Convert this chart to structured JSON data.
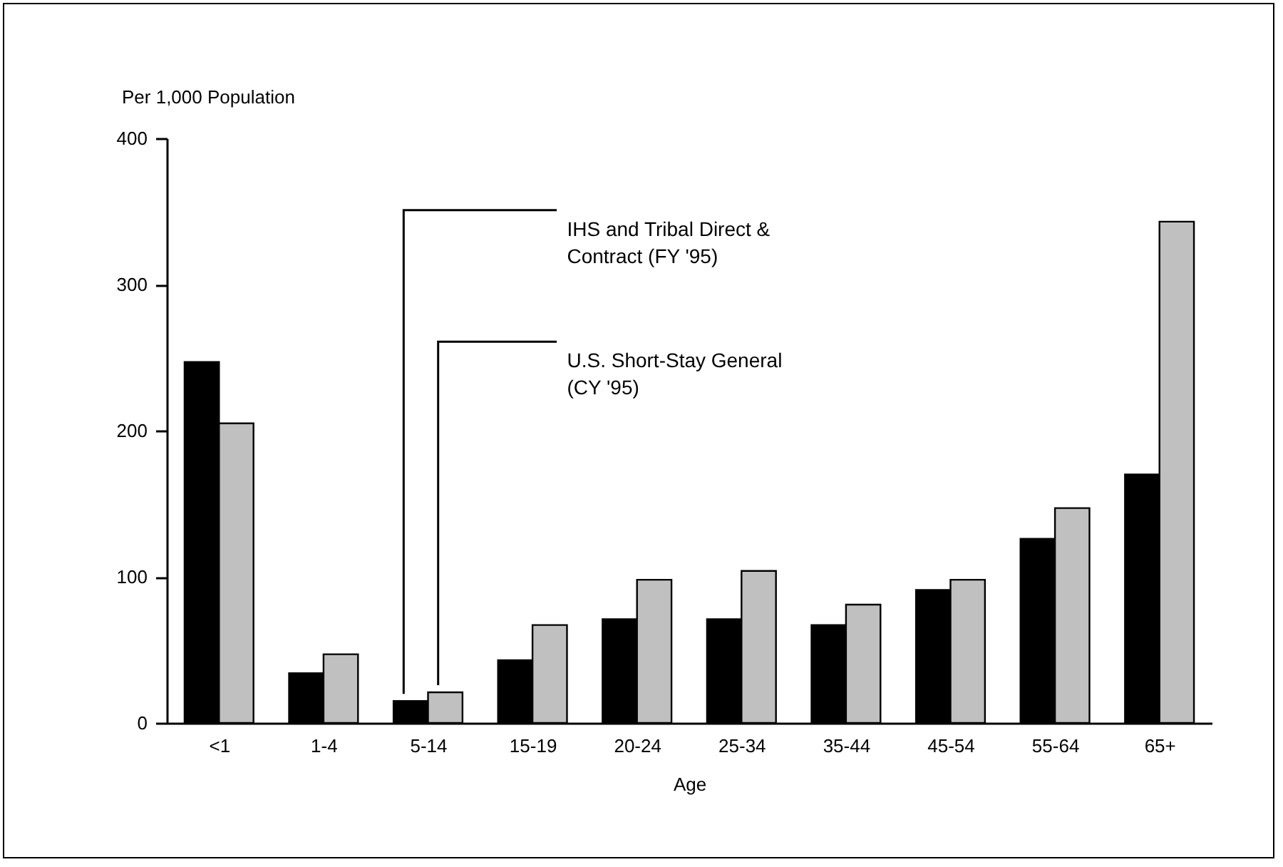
{
  "chart_data": {
    "type": "bar",
    "xlabel": "Age",
    "ylabel": "Per 1,000 Population",
    "categories": [
      "<1",
      "1-4",
      "5-14",
      "15-19",
      "20-24",
      "25-34",
      "35-44",
      "45-54",
      "55-64",
      "65+"
    ],
    "series": [
      {
        "name": "IHS and Tribal Direct & Contract (FY '95)",
        "color": "#000000",
        "values": [
          247,
          34,
          15,
          43,
          71,
          71,
          67,
          91,
          126,
          170
        ]
      },
      {
        "name": "U.S. Short-Stay General (CY '95)",
        "color": "#c0c0c0",
        "values": [
          205,
          47,
          21,
          67,
          98,
          104,
          81,
          98,
          147,
          343
        ]
      }
    ],
    "ylim": [
      0,
      400
    ],
    "yticks": [
      0,
      100,
      200,
      300,
      400
    ],
    "grid": false,
    "legend": "top"
  }
}
